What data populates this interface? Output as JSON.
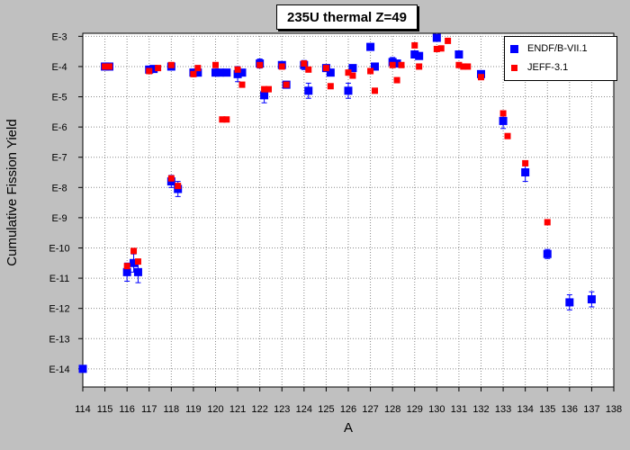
{
  "chart_data": {
    "type": "scatter",
    "title": "235U thermal Z=49",
    "xlabel": "A",
    "ylabel": "Cumulative Fission Yield",
    "xlim": [
      114,
      138
    ],
    "ylim_exponent": [
      -14.6,
      -2.9
    ],
    "yscale": "log",
    "grid": true,
    "legend_position": "top-right",
    "x_ticks": [
      "114",
      "115",
      "116",
      "117",
      "118",
      "119",
      "120",
      "121",
      "122",
      "123",
      "124",
      "125",
      "126",
      "127",
      "128",
      "129",
      "130",
      "131",
      "132",
      "133",
      "134",
      "135",
      "136",
      "137",
      "138"
    ],
    "y_ticks": [
      {
        "exp": -3,
        "label": "E-3"
      },
      {
        "exp": -4,
        "label": "E-4"
      },
      {
        "exp": -5,
        "label": "E-5"
      },
      {
        "exp": -6,
        "label": "E-6"
      },
      {
        "exp": -7,
        "label": "E-7"
      },
      {
        "exp": -8,
        "label": "E-8"
      },
      {
        "exp": -9,
        "label": "E-9"
      },
      {
        "exp": -10,
        "label": "E-10"
      },
      {
        "exp": -11,
        "label": "E-11"
      },
      {
        "exp": -12,
        "label": "E-12"
      },
      {
        "exp": -13,
        "label": "E-13"
      },
      {
        "exp": -14,
        "label": "E-14"
      }
    ],
    "series": [
      {
        "name": "ENDF/B-VII.1",
        "color": "#0000ff",
        "marker": "square",
        "points": [
          {
            "x": 114.0,
            "y": -14.0
          },
          {
            "x": 115.0,
            "y": -4.0
          },
          {
            "x": 115.2,
            "y": -4.0
          },
          {
            "x": 116.0,
            "y": -10.8,
            "err": 0.3
          },
          {
            "x": 116.3,
            "y": -10.5,
            "err": 0.3
          },
          {
            "x": 116.5,
            "y": -10.8,
            "err": 0.35
          },
          {
            "x": 117.0,
            "y": -4.1
          },
          {
            "x": 117.2,
            "y": -4.08
          },
          {
            "x": 118.0,
            "y": -4.0
          },
          {
            "x": 118.0,
            "y": -7.8,
            "err": 0.2
          },
          {
            "x": 118.3,
            "y": -8.05,
            "err": 0.25
          },
          {
            "x": 119.0,
            "y": -4.2
          },
          {
            "x": 119.2,
            "y": -4.2
          },
          {
            "x": 120.0,
            "y": -4.2
          },
          {
            "x": 120.2,
            "y": -4.2
          },
          {
            "x": 120.5,
            "y": -4.2
          },
          {
            "x": 121.0,
            "y": -4.25,
            "err": 0.25
          },
          {
            "x": 121.2,
            "y": -4.2
          },
          {
            "x": 122.0,
            "y": -3.9,
            "err": 0.15
          },
          {
            "x": 122.2,
            "y": -4.95,
            "err": 0.25
          },
          {
            "x": 123.0,
            "y": -3.95
          },
          {
            "x": 123.2,
            "y": -4.6
          },
          {
            "x": 124.0,
            "y": -3.95,
            "err": 0.15
          },
          {
            "x": 124.2,
            "y": -4.8,
            "err": 0.25
          },
          {
            "x": 125.0,
            "y": -4.05
          },
          {
            "x": 125.2,
            "y": -4.2
          },
          {
            "x": 126.0,
            "y": -4.8,
            "err": 0.25
          },
          {
            "x": 126.2,
            "y": -4.05
          },
          {
            "x": 127.0,
            "y": -3.35
          },
          {
            "x": 127.2,
            "y": -4.0
          },
          {
            "x": 128.0,
            "y": -3.85,
            "err": 0.15
          },
          {
            "x": 128.2,
            "y": -3.9
          },
          {
            "x": 129.0,
            "y": -3.6
          },
          {
            "x": 129.2,
            "y": -3.65
          },
          {
            "x": 130.0,
            "y": -3.05
          },
          {
            "x": 131.0,
            "y": -3.6
          },
          {
            "x": 132.0,
            "y": -4.25
          },
          {
            "x": 133.0,
            "y": -5.8,
            "err": 0.25
          },
          {
            "x": 134.0,
            "y": -7.5,
            "err": 0.3
          },
          {
            "x": 135.0,
            "y": -10.2,
            "err": 0.15
          },
          {
            "x": 136.0,
            "y": -11.8,
            "err": 0.25
          },
          {
            "x": 137.0,
            "y": -11.7,
            "err": 0.25
          }
        ]
      },
      {
        "name": "JEFF-3.1",
        "color": "#ff0000",
        "marker": "square",
        "points": [
          {
            "x": 115.0,
            "y": -4.0
          },
          {
            "x": 115.2,
            "y": -4.0
          },
          {
            "x": 116.0,
            "y": -10.6
          },
          {
            "x": 116.3,
            "y": -10.1
          },
          {
            "x": 116.5,
            "y": -10.45
          },
          {
            "x": 117.0,
            "y": -4.15
          },
          {
            "x": 117.4,
            "y": -4.05
          },
          {
            "x": 118.0,
            "y": -3.95
          },
          {
            "x": 118.0,
            "y": -7.7
          },
          {
            "x": 118.3,
            "y": -7.95
          },
          {
            "x": 119.0,
            "y": -4.25
          },
          {
            "x": 119.2,
            "y": -4.05
          },
          {
            "x": 120.0,
            "y": -3.95
          },
          {
            "x": 120.3,
            "y": -5.75
          },
          {
            "x": 120.5,
            "y": -5.75
          },
          {
            "x": 121.0,
            "y": -4.1
          },
          {
            "x": 121.2,
            "y": -4.6
          },
          {
            "x": 122.0,
            "y": -3.95
          },
          {
            "x": 122.2,
            "y": -4.75
          },
          {
            "x": 122.4,
            "y": -4.75
          },
          {
            "x": 123.0,
            "y": -4.0
          },
          {
            "x": 123.2,
            "y": -4.6
          },
          {
            "x": 124.0,
            "y": -3.9
          },
          {
            "x": 124.2,
            "y": -4.1
          },
          {
            "x": 125.0,
            "y": -4.05
          },
          {
            "x": 125.2,
            "y": -4.65
          },
          {
            "x": 126.0,
            "y": -4.2
          },
          {
            "x": 126.2,
            "y": -4.3
          },
          {
            "x": 127.0,
            "y": -4.15
          },
          {
            "x": 127.2,
            "y": -4.8
          },
          {
            "x": 128.0,
            "y": -3.95
          },
          {
            "x": 128.2,
            "y": -4.45
          },
          {
            "x": 128.4,
            "y": -3.95
          },
          {
            "x": 129.0,
            "y": -3.3
          },
          {
            "x": 129.2,
            "y": -4.0
          },
          {
            "x": 130.0,
            "y": -3.42
          },
          {
            "x": 130.2,
            "y": -3.4
          },
          {
            "x": 130.5,
            "y": -3.15
          },
          {
            "x": 131.0,
            "y": -3.95
          },
          {
            "x": 131.2,
            "y": -4.0
          },
          {
            "x": 131.4,
            "y": -4.0
          },
          {
            "x": 132.0,
            "y": -4.35
          },
          {
            "x": 133.0,
            "y": -5.55
          },
          {
            "x": 133.2,
            "y": -6.3
          },
          {
            "x": 134.0,
            "y": -7.2
          },
          {
            "x": 135.0,
            "y": -9.15
          }
        ]
      }
    ]
  }
}
